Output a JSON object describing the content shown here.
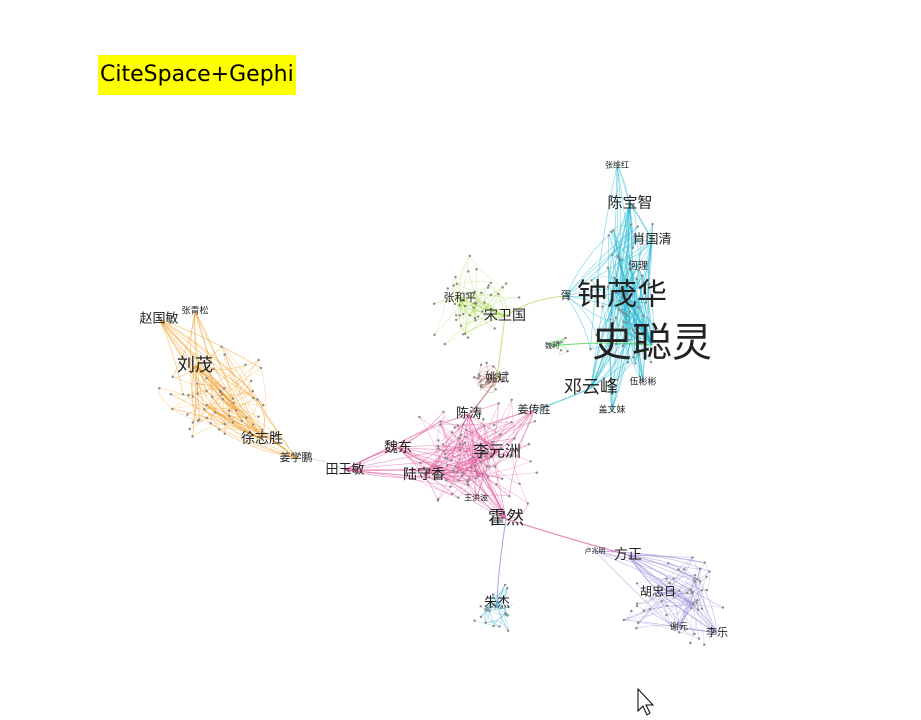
{
  "title": "CiteSpace+Gephi",
  "clusters": {
    "cyan": "#22b8d1",
    "lime": "#a8d84a",
    "green": "#33cc33",
    "brown": "#a0523c",
    "pink": "#e0559a",
    "orange": "#f09a1e",
    "purple": "#9b8bd6",
    "teal": "#1fa3c4"
  },
  "authors": [
    {
      "id": "shi-congling",
      "name": "史聪灵",
      "cluster": "cyan",
      "size": 40
    },
    {
      "id": "zhong-maohua",
      "name": "钟茂华",
      "cluster": "cyan",
      "size": 30
    },
    {
      "id": "deng-yunfeng",
      "name": "邓云峰",
      "cluster": "cyan",
      "size": 18
    },
    {
      "id": "chen-baozhi",
      "name": "陈宝智",
      "cluster": "cyan",
      "size": 15
    },
    {
      "id": "xiao-guoqing",
      "name": "肖国清",
      "cluster": "cyan",
      "size": 13
    },
    {
      "id": "zhang-weihong",
      "name": "张维红",
      "cluster": "cyan",
      "size": 8
    },
    {
      "id": "he-li",
      "name": "何理",
      "cluster": "cyan",
      "size": 10
    },
    {
      "id": "wu-binbin",
      "name": "伍彬彬",
      "cluster": "cyan",
      "size": 9
    },
    {
      "id": "gai-wenmei",
      "name": "盖文妹",
      "cluster": "cyan",
      "size": 9
    },
    {
      "id": "xu",
      "name": "胥",
      "cluster": "cyan",
      "size": 11
    },
    {
      "id": "song-weiguo",
      "name": "宋卫国",
      "cluster": "lime",
      "size": 14
    },
    {
      "id": "zhang-heping",
      "name": "张和平",
      "cluster": "lime",
      "size": 11
    },
    {
      "id": "wei-li",
      "name": "魏利",
      "cluster": "green",
      "size": 7
    },
    {
      "id": "yao-bin",
      "name": "姚斌",
      "cluster": "brown",
      "size": 12
    },
    {
      "id": "li-yuanzhou",
      "name": "李元洲",
      "cluster": "pink",
      "size": 16
    },
    {
      "id": "huo-ran",
      "name": "霍然",
      "cluster": "pink",
      "size": 18
    },
    {
      "id": "chen-tao",
      "name": "陈涛",
      "cluster": "pink",
      "size": 13
    },
    {
      "id": "jiang-chuansheng",
      "name": "姜传胜",
      "cluster": "pink",
      "size": 11
    },
    {
      "id": "wei-dong",
      "name": "魏东",
      "cluster": "pink",
      "size": 14
    },
    {
      "id": "lu-shouxiang",
      "name": "陆守香",
      "cluster": "pink",
      "size": 14
    },
    {
      "id": "tian-yumin",
      "name": "田玉敏",
      "cluster": "pink",
      "size": 13
    },
    {
      "id": "wang-hongbo",
      "name": "王洪波",
      "cluster": "pink",
      "size": 8
    },
    {
      "id": "liu-mao",
      "name": "刘茂",
      "cluster": "orange",
      "size": 18
    },
    {
      "id": "zhao-guomin",
      "name": "赵国敏",
      "cluster": "orange",
      "size": 13
    },
    {
      "id": "zhang-qingsong",
      "name": "张青松",
      "cluster": "orange",
      "size": 9
    },
    {
      "id": "xu-zhisheng",
      "name": "徐志胜",
      "cluster": "orange",
      "size": 14
    },
    {
      "id": "jiang-xuepeng",
      "name": "姜学鹏",
      "cluster": "orange",
      "size": 11
    },
    {
      "id": "fang-zheng",
      "name": "方正",
      "cluster": "purple",
      "size": 14
    },
    {
      "id": "hu-zhongri",
      "name": "胡忠日",
      "cluster": "purple",
      "size": 12
    },
    {
      "id": "li-le",
      "name": "李乐",
      "cluster": "purple",
      "size": 11
    },
    {
      "id": "xie-yuan",
      "name": "谢元",
      "cluster": "purple",
      "size": 9
    },
    {
      "id": "lu-zhaoming",
      "name": "卢兆明",
      "cluster": "purple",
      "size": 7
    },
    {
      "id": "zhu-jie",
      "name": "朱杰",
      "cluster": "teal",
      "size": 13
    }
  ]
}
